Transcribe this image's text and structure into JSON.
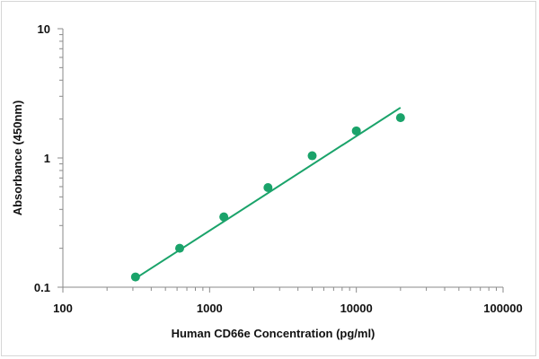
{
  "chart_data": {
    "type": "scatter",
    "title": "",
    "xlabel": "Human CD66e Concentration (pg/ml)",
    "ylabel": "Absorbance (450nm)",
    "x_scale": "log",
    "y_scale": "log",
    "xlim": [
      100,
      100000
    ],
    "ylim": [
      0.1,
      10
    ],
    "x_ticks": [
      "100",
      "1000",
      "10000",
      "100000"
    ],
    "y_ticks": [
      "0.1",
      "1",
      "10"
    ],
    "grid": false,
    "legend": "none",
    "series": [
      {
        "x": [
          312.5,
          625,
          1250,
          2500,
          5000,
          10000,
          20000
        ],
        "y": [
          0.12,
          0.2,
          0.35,
          0.59,
          1.04,
          1.62,
          2.05
        ],
        "color": "#1aa36a",
        "marker": "circle"
      }
    ],
    "trendline": {
      "type": "power",
      "x": [
        312.5,
        20000
      ],
      "y": [
        0.117,
        2.45
      ],
      "color": "#1aa36a"
    }
  }
}
